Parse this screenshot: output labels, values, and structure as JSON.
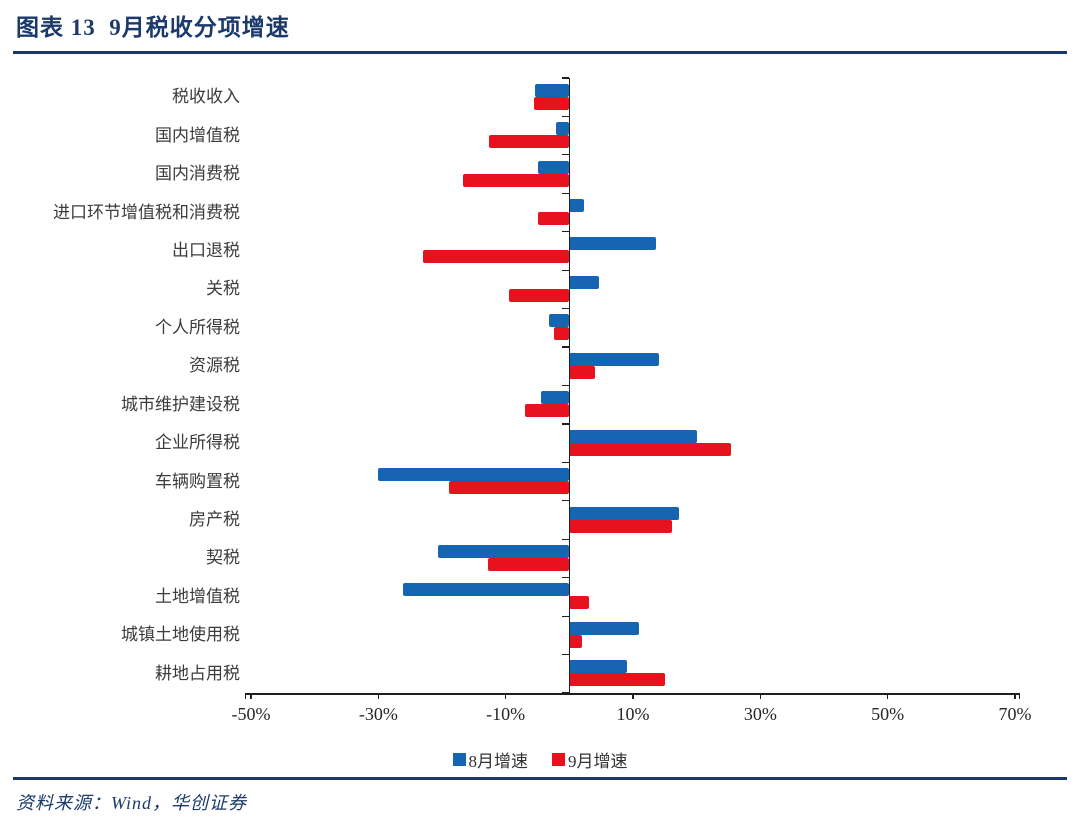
{
  "header": {
    "title": "图表 13  9月税收分项增速"
  },
  "footer": {
    "source": "资料来源：Wind，华创证券"
  },
  "colors": {
    "navy": "#1B3A6B",
    "aug_blue": "#1565B2",
    "sep_red": "#E8121E",
    "label_gray": "#3C3C3C",
    "axis_black": "#1F1F1F"
  },
  "chart_data": {
    "type": "bar",
    "orientation": "horizontal",
    "title": "9月税收分项增速",
    "categories": [
      "税收收入",
      "国内增值税",
      "国内消费税",
      "进口环节增值税和消费税",
      "出口退税",
      "关税",
      "个人所得税",
      "资源税",
      "城市维护建设税",
      "企业所得税",
      "车辆购置税",
      "房产税",
      "契税",
      "土地增值税",
      "城镇土地使用税",
      "耕地占用税"
    ],
    "series": [
      {
        "name": "8月增速",
        "color_key": "aug_blue",
        "values": [
          -5.4,
          -2.1,
          -5.0,
          2.3,
          13.6,
          4.7,
          -3.2,
          14.1,
          -4.5,
          20.1,
          -30.0,
          17.2,
          -20.6,
          -26.2,
          10.9,
          9.0
        ]
      },
      {
        "name": "9月增速",
        "color_key": "sep_red",
        "values": [
          -5.5,
          -12.6,
          -16.7,
          -4.9,
          -23.0,
          -9.5,
          -2.4,
          4.0,
          -7.0,
          25.4,
          -18.9,
          16.2,
          -12.7,
          3.1,
          2.0,
          15.1
        ]
      }
    ],
    "value_unit": "%",
    "xlim": [
      -50,
      70
    ],
    "xticks": [
      -50,
      -30,
      -10,
      10,
      30,
      50,
      70
    ],
    "xtick_labels": [
      "-50%",
      "-30%",
      "-10%",
      "10%",
      "30%",
      "50%",
      "70%"
    ],
    "grid": false,
    "legend_position": "bottom"
  }
}
